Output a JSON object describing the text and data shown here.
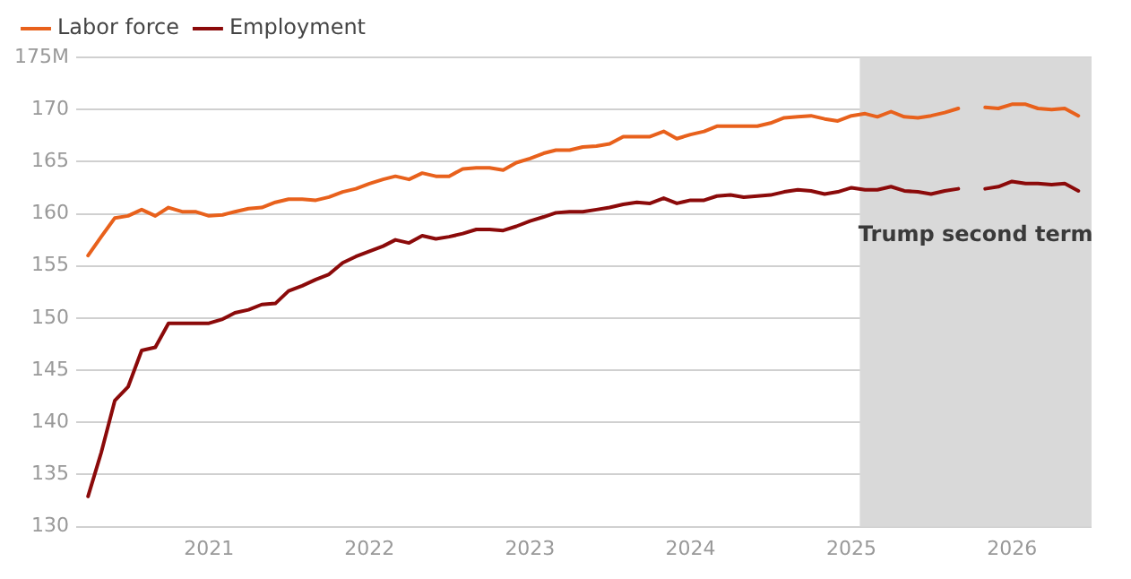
{
  "chart_data": {
    "type": "line",
    "legend": "top left",
    "grid": "y",
    "marker": "none",
    "line_style": "solid",
    "x": [
      "2020-04",
      "2020-05",
      "2020-06",
      "2020-07",
      "2020-08",
      "2020-09",
      "2020-10",
      "2020-11",
      "2020-12",
      "2021-01",
      "2021-02",
      "2021-03",
      "2021-04",
      "2021-05",
      "2021-06",
      "2021-07",
      "2021-08",
      "2021-09",
      "2021-10",
      "2021-11",
      "2021-12",
      "2022-01",
      "2022-02",
      "2022-03",
      "2022-04",
      "2022-05",
      "2022-06",
      "2022-07",
      "2022-08",
      "2022-09",
      "2022-10",
      "2022-11",
      "2022-12",
      "2023-01",
      "2023-02",
      "2023-03",
      "2023-04",
      "2023-05",
      "2023-06",
      "2023-07",
      "2023-08",
      "2023-09",
      "2023-10",
      "2023-11",
      "2023-12",
      "2024-01",
      "2024-02",
      "2024-03",
      "2024-04",
      "2024-05",
      "2024-06",
      "2024-07",
      "2024-08",
      "2024-09",
      "2024-10",
      "2024-11",
      "2024-12",
      "2025-01",
      "2025-02",
      "2025-03",
      "2025-04",
      "2025-05",
      "2025-06",
      "2025-07",
      "2025-08",
      "2025-09",
      "2025-10",
      "2025-11",
      "2025-12",
      "2026-01",
      "2026-02",
      "2026-03",
      "2026-04",
      "2026-05",
      "2026-06"
    ],
    "series": [
      {
        "name": "Labor force",
        "color": "#e8611c",
        "values": [
          156.0,
          157.8,
          159.6,
          159.8,
          160.4,
          159.8,
          160.6,
          160.2,
          160.2,
          159.8,
          159.9,
          160.2,
          160.5,
          160.6,
          161.1,
          161.4,
          161.4,
          161.3,
          161.6,
          162.1,
          162.4,
          162.9,
          163.3,
          163.6,
          163.3,
          163.9,
          163.6,
          163.6,
          164.3,
          164.4,
          164.4,
          164.2,
          164.9,
          165.3,
          165.8,
          166.1,
          166.1,
          166.4,
          166.5,
          166.7,
          167.4,
          167.4,
          167.4,
          167.9,
          167.2,
          167.6,
          167.9,
          168.4,
          168.4,
          168.4,
          168.4,
          168.7,
          169.2,
          169.3,
          169.4,
          169.1,
          168.9,
          169.4,
          169.6,
          169.3,
          169.8,
          169.3,
          169.2,
          169.4,
          169.7,
          170.1,
          null,
          170.2,
          170.1,
          170.5,
          170.5,
          170.1,
          170.0,
          170.1,
          169.4
        ]
      },
      {
        "name": "Employment",
        "color": "#8b0a0a",
        "values": [
          132.9,
          137.1,
          142.1,
          143.4,
          146.9,
          147.2,
          149.5,
          149.5,
          149.5,
          149.5,
          149.9,
          150.5,
          150.8,
          151.3,
          151.4,
          152.6,
          153.1,
          153.7,
          154.2,
          155.3,
          155.9,
          156.4,
          156.9,
          157.5,
          157.2,
          157.9,
          157.6,
          157.8,
          158.1,
          158.5,
          158.5,
          158.4,
          158.8,
          159.3,
          159.7,
          160.1,
          160.2,
          160.2,
          160.4,
          160.6,
          160.9,
          161.1,
          161.0,
          161.5,
          161.0,
          161.3,
          161.3,
          161.7,
          161.8,
          161.6,
          161.7,
          161.8,
          162.1,
          162.3,
          162.2,
          161.9,
          162.1,
          162.5,
          162.3,
          162.3,
          162.6,
          162.2,
          162.1,
          161.9,
          162.2,
          162.4,
          null,
          162.4,
          162.6,
          163.1,
          162.9,
          162.9,
          162.8,
          162.9,
          162.2
        ]
      }
    ],
    "xlim": [
      "2020-03-05",
      "2026-07-01"
    ],
    "xticks": [
      "2021",
      "2022",
      "2023",
      "2024",
      "2025",
      "2026"
    ],
    "ylim": [
      130,
      175
    ],
    "yticks": [
      130,
      135,
      140,
      145,
      150,
      155,
      160,
      165,
      170,
      {
        "value": 175,
        "label": "175M"
      }
    ],
    "bands": [
      {
        "axis": "x",
        "from": "2025-01-20",
        "to": "2026-07-01",
        "label": "Trump second term",
        "color": "#d9d9d9"
      }
    ]
  }
}
